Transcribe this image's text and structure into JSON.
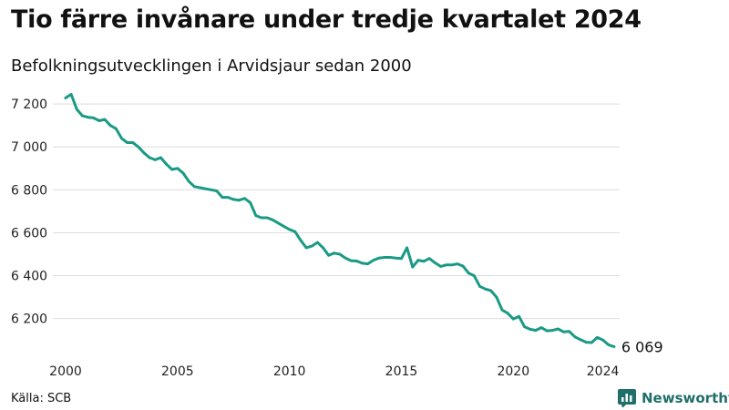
{
  "title": "Tio färre invånare under tredje kvartalet 2024",
  "subtitle": "Befolkningsutvecklingen i Arvidsjaur sedan 2000",
  "source": "Källa: SCB",
  "brand": {
    "name": "Newsworthy",
    "icon": "newsworthy-logo-icon"
  },
  "colors": {
    "line": "#1a9a84",
    "grid": "#dddddd",
    "brand": "#1f6f6a"
  },
  "chart_data": {
    "type": "line",
    "title": "Tio färre invånare under tredje kvartalet 2024",
    "subtitle": "Befolkningsutvecklingen i Arvidsjaur sedan 2000",
    "xlabel": "",
    "ylabel": "",
    "xlim": [
      2000,
      2024.75
    ],
    "ylim": [
      6050,
      7260
    ],
    "x_ticks": [
      2000,
      2005,
      2010,
      2015,
      2020,
      2024
    ],
    "x_tick_labels": [
      "2000",
      "2005",
      "2010",
      "2015",
      "2020",
      "2024"
    ],
    "y_ticks": [
      6200,
      6400,
      6600,
      6800,
      7000,
      7200
    ],
    "y_tick_labels": [
      "6 200",
      "6 400",
      "6 600",
      "6 800",
      "7 000",
      "7 200"
    ],
    "grid": "horizontal",
    "end_label": "6 069",
    "series": [
      {
        "x": [
          2000.0,
          2000.25,
          2000.5,
          2000.75,
          2001.0,
          2001.25,
          2001.5,
          2001.75,
          2002.0,
          2002.25,
          2002.5,
          2002.75,
          2003.0,
          2003.25,
          2003.5,
          2003.75,
          2004.0,
          2004.25,
          2004.5,
          2004.75,
          2005.0,
          2005.25,
          2005.5,
          2005.75,
          2006.0,
          2006.25,
          2006.5,
          2006.75,
          2007.0,
          2007.25,
          2007.5,
          2007.75,
          2008.0,
          2008.25,
          2008.5,
          2008.75,
          2009.0,
          2009.25,
          2009.5,
          2009.75,
          2010.0,
          2010.25,
          2010.5,
          2010.75,
          2011.0,
          2011.25,
          2011.5,
          2011.75,
          2012.0,
          2012.25,
          2012.5,
          2012.75,
          2013.0,
          2013.25,
          2013.5,
          2013.75,
          2014.0,
          2014.25,
          2014.5,
          2014.75,
          2015.0,
          2015.25,
          2015.5,
          2015.75,
          2016.0,
          2016.25,
          2016.5,
          2016.75,
          2017.0,
          2017.25,
          2017.5,
          2017.75,
          2018.0,
          2018.25,
          2018.5,
          2018.75,
          2019.0,
          2019.25,
          2019.5,
          2019.75,
          2020.0,
          2020.25,
          2020.5,
          2020.75,
          2021.0,
          2021.25,
          2021.5,
          2021.75,
          2022.0,
          2022.25,
          2022.5,
          2022.75,
          2023.0,
          2023.25,
          2023.5,
          2023.75,
          2024.0,
          2024.25,
          2024.5
        ],
        "values": [
          7228,
          7245,
          7175,
          7145,
          7138,
          7135,
          7122,
          7128,
          7100,
          7085,
          7040,
          7020,
          7020,
          7000,
          6972,
          6950,
          6940,
          6950,
          6920,
          6895,
          6900,
          6878,
          6840,
          6815,
          6810,
          6805,
          6800,
          6795,
          6765,
          6765,
          6755,
          6752,
          6760,
          6740,
          6680,
          6670,
          6670,
          6660,
          6645,
          6630,
          6615,
          6605,
          6565,
          6530,
          6538,
          6555,
          6530,
          6495,
          6505,
          6500,
          6482,
          6470,
          6468,
          6458,
          6455,
          6472,
          6482,
          6485,
          6485,
          6482,
          6480,
          6530,
          6440,
          6472,
          6467,
          6480,
          6460,
          6443,
          6450,
          6450,
          6455,
          6445,
          6412,
          6400,
          6350,
          6338,
          6330,
          6300,
          6240,
          6225,
          6198,
          6210,
          6162,
          6150,
          6145,
          6158,
          6143,
          6145,
          6152,
          6138,
          6140,
          6115,
          6102,
          6090,
          6088,
          6112,
          6100,
          6078,
          6069
        ]
      }
    ]
  }
}
